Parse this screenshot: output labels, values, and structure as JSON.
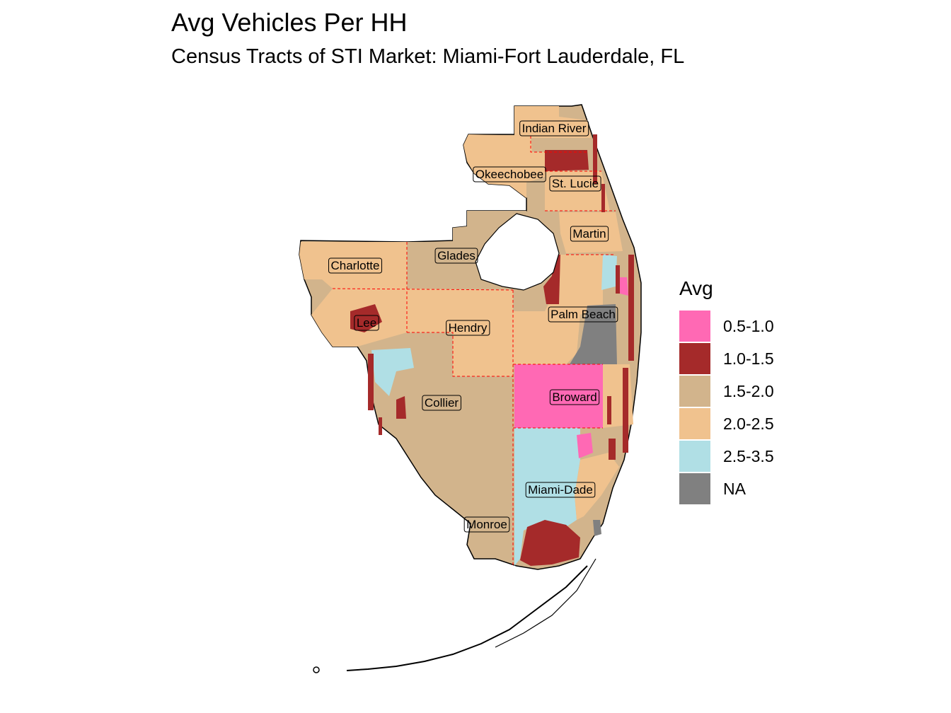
{
  "title": "Avg Vehicles Per HH",
  "subtitle": "Census Tracts of STI Market: Miami-Fort Lauderdale, FL",
  "legend": {
    "title": "Avg",
    "items": [
      {
        "label": "0.5-1.0",
        "color": "#ff69b4"
      },
      {
        "label": "1.0-1.5",
        "color": "#a52a2a"
      },
      {
        "label": "1.5-2.0",
        "color": "#d2b48c"
      },
      {
        "label": "2.0-2.5",
        "color": "#f0c28e"
      },
      {
        "label": "2.5-3.5",
        "color": "#b0dfe5"
      },
      {
        "label": "NA",
        "color": "#808080"
      }
    ]
  },
  "counties": [
    {
      "name": "Indian River"
    },
    {
      "name": "Okeechobee"
    },
    {
      "name": "St. Lucie"
    },
    {
      "name": "Martin"
    },
    {
      "name": "Glades"
    },
    {
      "name": "Charlotte"
    },
    {
      "name": "Palm Beach"
    },
    {
      "name": "Lee"
    },
    {
      "name": "Hendry"
    },
    {
      "name": "Broward"
    },
    {
      "name": "Collier"
    },
    {
      "name": "Miami-Dade"
    },
    {
      "name": "Monroe"
    }
  ]
}
